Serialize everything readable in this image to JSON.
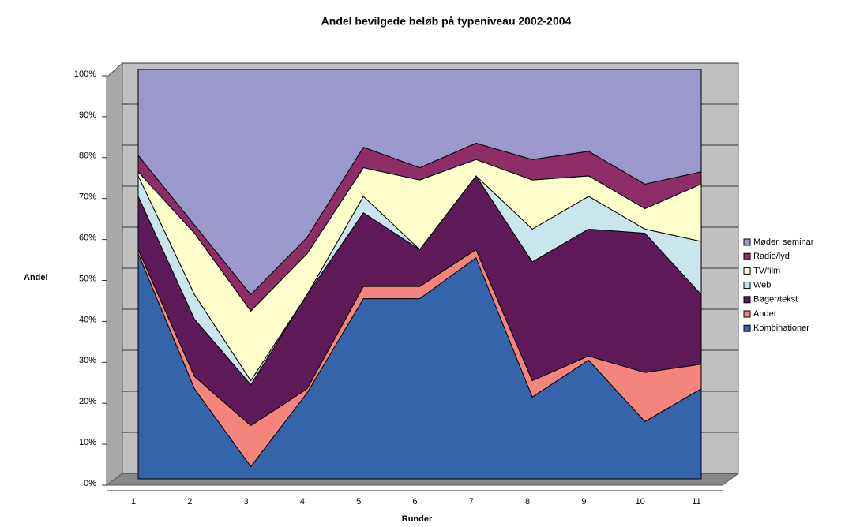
{
  "chart_data": {
    "type": "stacked_area",
    "title": "Andel bevilgede beløb på typeniveau 2002-2004",
    "x_label": "Runder",
    "y_label": "Andel",
    "categories": [
      "1",
      "2",
      "3",
      "4",
      "5",
      "6",
      "7",
      "8",
      "9",
      "10",
      "11"
    ],
    "series": [
      {
        "name": "Kombinationer",
        "color": "#3465ab",
        "values": [
          55,
          22,
          3,
          21,
          44,
          44,
          54,
          20,
          29,
          14,
          22
        ]
      },
      {
        "name": "Andet",
        "color": "#f4847c",
        "values": [
          1,
          3,
          10,
          1,
          3,
          3,
          2,
          4,
          1,
          12,
          6
        ]
      },
      {
        "name": "Bøger/tekst",
        "color": "#5e1a58",
        "values": [
          13,
          14,
          10,
          23,
          18,
          9,
          18,
          29,
          31,
          34,
          17
        ]
      },
      {
        "name": "Web",
        "color": "#c9e6ee",
        "values": [
          5,
          6,
          1,
          0,
          4,
          0,
          0,
          8,
          8,
          1,
          13
        ]
      },
      {
        "name": "TV/film",
        "color": "#ffffcc",
        "values": [
          1,
          15,
          17,
          10,
          7,
          17,
          4,
          12,
          5,
          5,
          14
        ]
      },
      {
        "name": "Radio/lyd",
        "color": "#8f2d69",
        "values": [
          4,
          2,
          4,
          4,
          5,
          3,
          4,
          5,
          6,
          6,
          3
        ]
      },
      {
        "name": "Møder, seminar",
        "color": "#9b99cc",
        "values": [
          21,
          38,
          55,
          41,
          19,
          24,
          18,
          22,
          20,
          28,
          25
        ]
      }
    ],
    "ylim": [
      0,
      100
    ],
    "yticks": [
      {
        "value": 0,
        "label": "0%"
      },
      {
        "value": 10,
        "label": "10%"
      },
      {
        "value": 20,
        "label": "20%"
      },
      {
        "value": 30,
        "label": "30%"
      },
      {
        "value": 40,
        "label": "40%"
      },
      {
        "value": 50,
        "label": "50%"
      },
      {
        "value": 60,
        "label": "60%"
      },
      {
        "value": 70,
        "label": "70%"
      },
      {
        "value": 80,
        "label": "80%"
      },
      {
        "value": 90,
        "label": "90%"
      },
      {
        "value": 100,
        "label": "100%"
      }
    ],
    "grid": true,
    "legend": "right"
  }
}
